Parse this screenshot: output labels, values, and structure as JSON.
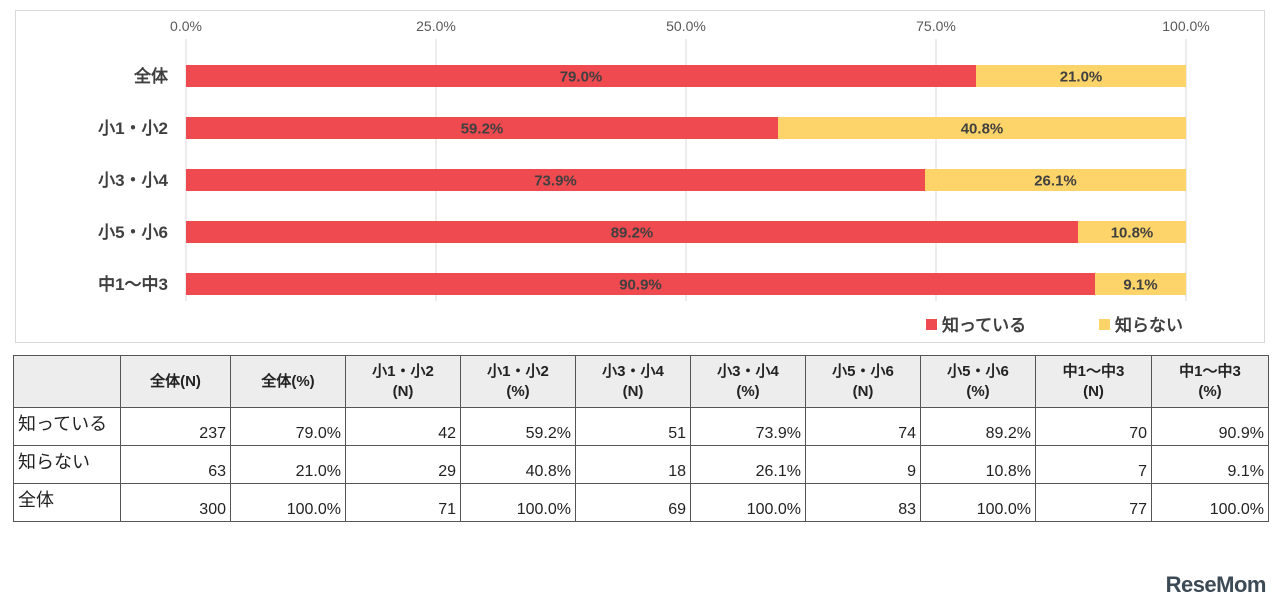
{
  "chart_data": {
    "type": "bar",
    "orientation": "horizontal",
    "stacked": true,
    "categories": [
      "全体",
      "小1・小2",
      "小3・小4",
      "小5・小6",
      "中1～中3"
    ],
    "series": [
      {
        "name": "知っている",
        "values": [
          79.0,
          59.2,
          73.9,
          89.2,
          90.9
        ],
        "labels": [
          "79.0%",
          "59.2%",
          "73.9%",
          "89.2%",
          "90.9%"
        ],
        "color": "#ef4a4f"
      },
      {
        "name": "知らない",
        "values": [
          21.0,
          40.8,
          26.1,
          10.8,
          9.1
        ],
        "labels": [
          "21.0%",
          "40.8%",
          "26.1%",
          "10.8%",
          "9.1%"
        ],
        "color": "#fdd46a"
      }
    ],
    "xlim": [
      0,
      100
    ],
    "ticks": [
      0,
      25,
      50,
      75,
      100
    ],
    "tick_labels": [
      "0.0%",
      "25.0%",
      "50.0%",
      "75.0%",
      "100.0%"
    ],
    "grid": true,
    "legend_position": "bottom-right"
  },
  "table": {
    "headers": [
      "",
      "全体(N)",
      "全体(%)",
      "小1・小2\n(N)",
      "小1・小2\n(%)",
      "小3・小4\n(N)",
      "小3・小4\n(%)",
      "小5・小6\n(N)",
      "小5・小6\n(%)",
      "中1～中3\n(N)",
      "中1～中3\n(%)"
    ],
    "rows": [
      [
        "知っている",
        "237",
        "79.0%",
        "42",
        "59.2%",
        "51",
        "73.9%",
        "74",
        "89.2%",
        "70",
        "90.9%"
      ],
      [
        "知らない",
        "63",
        "21.0%",
        "29",
        "40.8%",
        "18",
        "26.1%",
        "9",
        "10.8%",
        "7",
        "9.1%"
      ],
      [
        "全体",
        "300",
        "100.0%",
        "71",
        "100.0%",
        "69",
        "100.0%",
        "83",
        "100.0%",
        "77",
        "100.0%"
      ]
    ]
  },
  "brand": {
    "name": "ReseMom"
  }
}
